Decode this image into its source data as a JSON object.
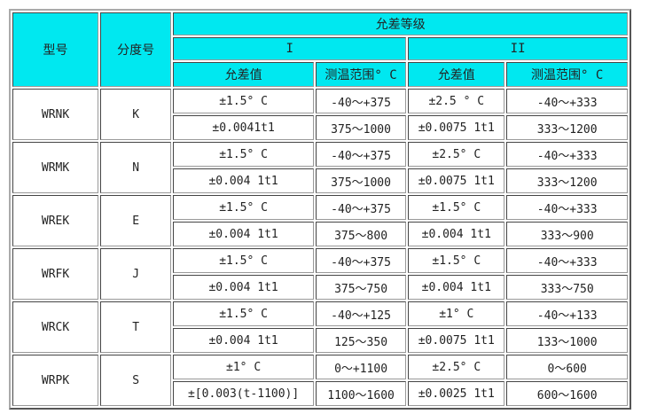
{
  "header": {
    "model": "型号",
    "graduation": "分度号",
    "tolerance_class": "允差等级",
    "class_1": "I",
    "class_2": "II",
    "tolerance": "允差值",
    "range": "测温范围° C"
  },
  "rows": [
    {
      "model": "WRNK",
      "grad": "K",
      "lines": [
        [
          "±1.5° C",
          "-40～+375",
          "±2.5 ° C",
          "-40～+333"
        ],
        [
          "±0.0041t1",
          "375～1000",
          "±0.0075 1t1",
          "333～1200"
        ]
      ]
    },
    {
      "model": "WRMK",
      "grad": "N",
      "lines": [
        [
          "±1.5° C",
          "-40～+375",
          "±2.5° C",
          "-40～+333"
        ],
        [
          "±0.004 1t1",
          "375～1000",
          "±0.0075 1t1",
          "333～1200"
        ]
      ]
    },
    {
      "model": "WREK",
      "grad": "E",
      "lines": [
        [
          "±1.5° C",
          "-40～+375",
          "±1.5° C",
          "-40～+333"
        ],
        [
          "±0.004 1t1",
          "375～800",
          "±0.004 1t1",
          "333～900"
        ]
      ]
    },
    {
      "model": "WRFK",
      "grad": "J",
      "lines": [
        [
          "±1.5° C",
          "-40～+375",
          "±1.5° C",
          "-40～+333"
        ],
        [
          "±0.004 1t1",
          "375～750",
          "±0.004 1t1",
          "333～750"
        ]
      ]
    },
    {
      "model": "WRCK",
      "grad": "T",
      "lines": [
        [
          "±1.5° C",
          "-40～+125",
          "±1° C",
          "-40～+133"
        ],
        [
          "±0.004 1t1",
          "125～350",
          "±0.0075 1t1",
          "133～1000"
        ]
      ]
    },
    {
      "model": "WRPK",
      "grad": "S",
      "lines": [
        [
          "±1° C",
          "0～+1100",
          "±2.5° C",
          "0～600"
        ],
        [
          "±[0.003(t-1100)]",
          "1100～1600",
          "±0.0025 1t1",
          "600～1600"
        ]
      ]
    }
  ],
  "colors": {
    "header_bg": "#00e8f0"
  }
}
